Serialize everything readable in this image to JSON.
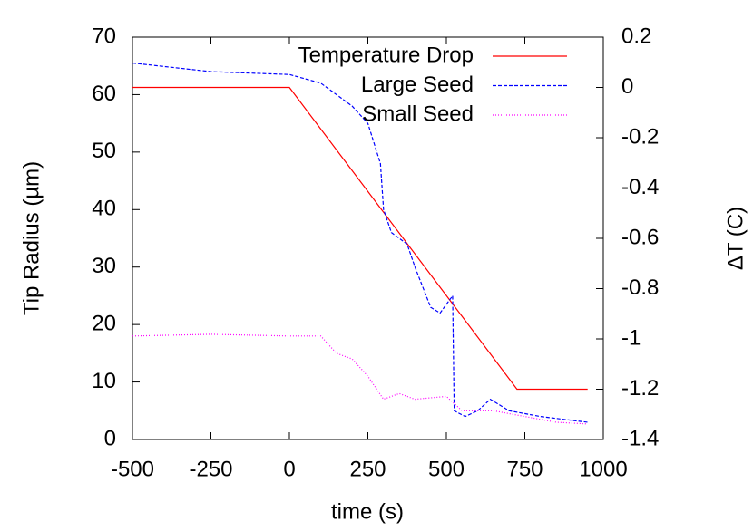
{
  "chart_data": {
    "type": "line",
    "x_label": "time (s)",
    "y_label": "Tip Radius (µm)",
    "y2_label": "ΔT (C)",
    "xlim": [
      -500,
      1000
    ],
    "xticks": [
      -500,
      -250,
      0,
      250,
      500,
      750,
      1000
    ],
    "ylim": [
      0,
      70
    ],
    "yticks": [
      0,
      10,
      20,
      30,
      40,
      50,
      60,
      70
    ],
    "y2lim": [
      -1.4,
      0.2
    ],
    "y2ticks": [
      -1.4,
      -1.2,
      -1,
      -0.8,
      -0.6,
      -0.4,
      -0.2,
      0,
      0.2
    ],
    "legend": "top-right",
    "series": [
      {
        "name": "Temperature Drop",
        "color": "#ff0000",
        "axis": "y2",
        "dash": "solid",
        "x": [
          -500,
          0,
          725,
          950
        ],
        "values": [
          0,
          0,
          -1.2,
          -1.2
        ]
      },
      {
        "name": "Large Seed",
        "color": "#0000ff",
        "dash": "dashed",
        "x": [
          -500,
          -250,
          0,
          100,
          200,
          250,
          290,
          300,
          325,
          375,
          400,
          450,
          480,
          520,
          525,
          560,
          600,
          640,
          700,
          800,
          950
        ],
        "values": [
          65.5,
          64,
          63.5,
          62,
          58,
          55,
          48,
          40,
          36,
          34,
          30,
          23,
          22,
          25,
          5,
          4,
          5,
          7,
          5,
          4,
          3
        ]
      },
      {
        "name": "Small Seed",
        "color": "#ff00ff",
        "dash": "dotted",
        "x": [
          -500,
          -250,
          0,
          100,
          150,
          200,
          250,
          300,
          350,
          400,
          500,
          550,
          650,
          750,
          850,
          950
        ],
        "values": [
          18,
          18.3,
          18,
          18,
          15,
          14,
          11,
          7,
          8,
          7,
          7.5,
          5,
          5,
          4,
          3,
          2.7
        ]
      }
    ]
  }
}
